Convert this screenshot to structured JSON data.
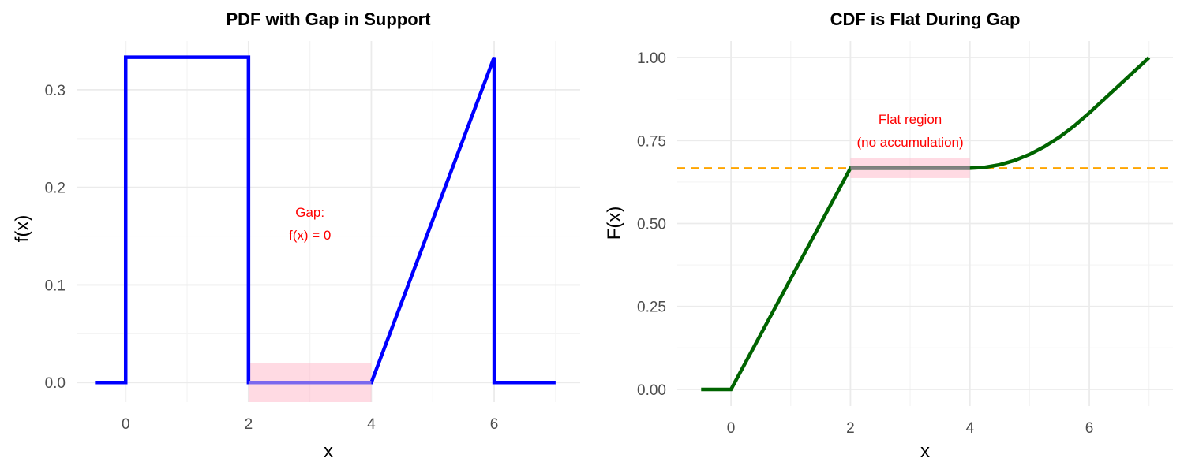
{
  "chart_data": [
    {
      "type": "line",
      "title": "PDF with Gap in Support",
      "xlabel": "x",
      "ylabel": "f(x)",
      "xlim": [
        -0.8,
        7.4
      ],
      "ylim": [
        -0.02,
        0.35
      ],
      "x_ticks": [
        0,
        2,
        4,
        6
      ],
      "x_tick_labels": [
        "0",
        "2",
        "4",
        "6"
      ],
      "y_ticks": [
        0,
        0.1,
        0.2,
        0.3
      ],
      "y_tick_labels": [
        "0.0",
        "0.1",
        "0.2",
        "0.3"
      ],
      "grid": true,
      "series": [
        {
          "color": "#0000ff",
          "x": [
            -0.5,
            0,
            0,
            2,
            2,
            4,
            6,
            6,
            7
          ],
          "y": [
            0,
            0,
            0.3333,
            0.3333,
            0,
            0,
            0.3333,
            0,
            0
          ]
        }
      ],
      "highlight": {
        "x": [
          2,
          4
        ],
        "y": [
          -0.02,
          0.02
        ],
        "color": "#ffb6c8",
        "opacity": 0.5
      },
      "overlay_line": {
        "x": [
          2,
          4
        ],
        "y": [
          0,
          0
        ],
        "color": "#7b68ee"
      },
      "annotations": [
        {
          "x": 3,
          "y": 0.163,
          "lines": [
            "Gap:",
            "f(x) = 0"
          ],
          "color": "#ff0000"
        }
      ]
    },
    {
      "type": "line",
      "title": "CDF is Flat During Gap",
      "xlabel": "x",
      "ylabel": "F(x)",
      "xlim": [
        -0.9,
        7.4
      ],
      "ylim": [
        -0.05,
        1.05
      ],
      "x_ticks": [
        0,
        2,
        4,
        6
      ],
      "x_tick_labels": [
        "0",
        "2",
        "4",
        "6"
      ],
      "y_ticks": [
        0,
        0.25,
        0.5,
        0.75,
        1.0
      ],
      "y_tick_labels": [
        "0.00",
        "0.25",
        "0.50",
        "0.75",
        "1.00"
      ],
      "grid": true,
      "series": [
        {
          "color": "#006400",
          "x": [
            -0.5,
            0,
            2,
            4,
            4.25,
            4.5,
            4.75,
            5,
            5.25,
            5.5,
            5.75,
            6,
            7
          ],
          "y": [
            0,
            0,
            0.6667,
            0.6667,
            0.6693,
            0.6771,
            0.6901,
            0.7083,
            0.7318,
            0.7604,
            0.7943,
            0.8333,
            1.0
          ]
        }
      ],
      "reference_line": {
        "y": 0.6667,
        "color": "#ffa500",
        "dashed": true
      },
      "highlight": {
        "x": [
          2,
          4
        ],
        "y": [
          0.6367,
          0.6967
        ],
        "color": "#ffb6c8",
        "opacity": 0.5
      },
      "overlay_line": {
        "x": [
          2,
          4
        ],
        "y": [
          0.6667,
          0.6667
        ],
        "color": "#808080"
      },
      "annotations": [
        {
          "x": 3,
          "y": 0.78,
          "lines": [
            "Flat region",
            "(no accumulation)"
          ],
          "color": "#ff0000"
        }
      ]
    }
  ]
}
